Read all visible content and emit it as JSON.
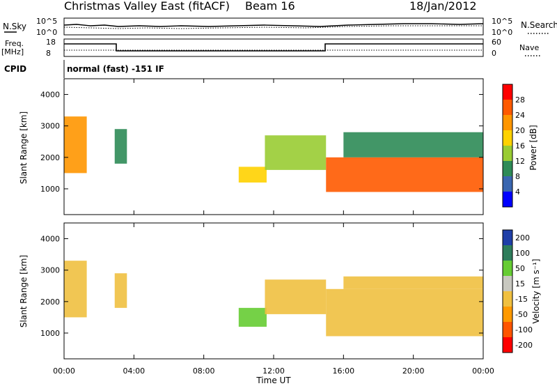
{
  "header": {
    "title": "Christmas Valley East (fitACF)",
    "beam": "Beam 16",
    "date": "18/Jan/2012"
  },
  "strips": {
    "nsky_label": "N.Sky",
    "nsky_ticks": [
      "10^5",
      "10^0"
    ],
    "nsearch_label": "N.Search",
    "nsearch_ticks": [
      "10^5",
      "10^0"
    ],
    "freq_label_1": "Freq.",
    "freq_label_2": "[MHz]",
    "freq_ticks": [
      "18",
      "8"
    ],
    "nave_label": "Nave",
    "nave_ticks": [
      "60",
      "0"
    ],
    "cpid_label": "CPID",
    "cpid_text": "normal (fast) -151 IF"
  },
  "power_scale": {
    "label": "Power [dB]",
    "ticks": [
      "28",
      "24",
      "20",
      "16",
      "12",
      "8",
      "4"
    ],
    "colors": [
      "#ff0000",
      "#ff5a00",
      "#ff9600",
      "#ffd200",
      "#99cc33",
      "#2e8b57",
      "#3a66b0",
      "#0000ff"
    ]
  },
  "velocity_scale": {
    "label": "Velocity [m s⁻¹]",
    "ticks": [
      "200",
      "100",
      "50",
      "15",
      "-15",
      "-50",
      "-100",
      "-200"
    ],
    "colors": [
      "#1f3fa8",
      "#2e7d5b",
      "#66cc33",
      "#c8c8c0",
      "#f0c040",
      "#ff9900",
      "#ff5500",
      "#ff0000"
    ]
  },
  "chart_data": [
    {
      "type": "heatmap",
      "name": "power",
      "ylabel": "Slant Range [km]",
      "xlim": [
        "00:00",
        "24:00"
      ],
      "ylim": [
        180,
        4500
      ],
      "yticks": [
        1000,
        2000,
        3000,
        4000
      ],
      "xticks": [
        "00:00",
        "04:00",
        "08:00",
        "12:00",
        "16:00",
        "20:00",
        "00:00"
      ],
      "regions": [
        {
          "t0": 0.0,
          "t1": 1.3,
          "r0": 1500,
          "r1": 3300,
          "value": 24
        },
        {
          "t0": 2.9,
          "t1": 3.6,
          "r0": 1800,
          "r1": 2900,
          "value": 12
        },
        {
          "t0": 10.0,
          "t1": 11.6,
          "r0": 1200,
          "r1": 1700,
          "value": 20
        },
        {
          "t0": 11.5,
          "t1": 15.0,
          "r0": 1600,
          "r1": 2700,
          "value": 16
        },
        {
          "t0": 15.0,
          "t1": 24.0,
          "r0": 900,
          "r1": 2000,
          "value": 28
        },
        {
          "t0": 16.0,
          "t1": 24.0,
          "r0": 2000,
          "r1": 2800,
          "value": 12
        }
      ]
    },
    {
      "type": "heatmap",
      "name": "velocity",
      "ylabel": "Slant Range [km]",
      "xlabel": "Time UT",
      "xlim": [
        "00:00",
        "24:00"
      ],
      "ylim": [
        180,
        4500
      ],
      "yticks": [
        1000,
        2000,
        3000,
        4000
      ],
      "xticks": [
        "00:00",
        "04:00",
        "08:00",
        "12:00",
        "16:00",
        "20:00",
        "00:00"
      ],
      "regions": [
        {
          "t0": 0.0,
          "t1": 1.3,
          "r0": 1500,
          "r1": 3300,
          "value": 0
        },
        {
          "t0": 2.9,
          "t1": 3.6,
          "r0": 1800,
          "r1": 2900,
          "value": 0
        },
        {
          "t0": 10.0,
          "t1": 11.6,
          "r0": 1200,
          "r1": 1800,
          "value": 50
        },
        {
          "t0": 11.5,
          "t1": 15.0,
          "r0": 1600,
          "r1": 2700,
          "value": 0
        },
        {
          "t0": 15.0,
          "t1": 24.0,
          "r0": 900,
          "r1": 2400,
          "value": 0
        },
        {
          "t0": 16.0,
          "t1": 24.0,
          "r0": 2400,
          "r1": 2800,
          "value": 0
        }
      ]
    }
  ]
}
